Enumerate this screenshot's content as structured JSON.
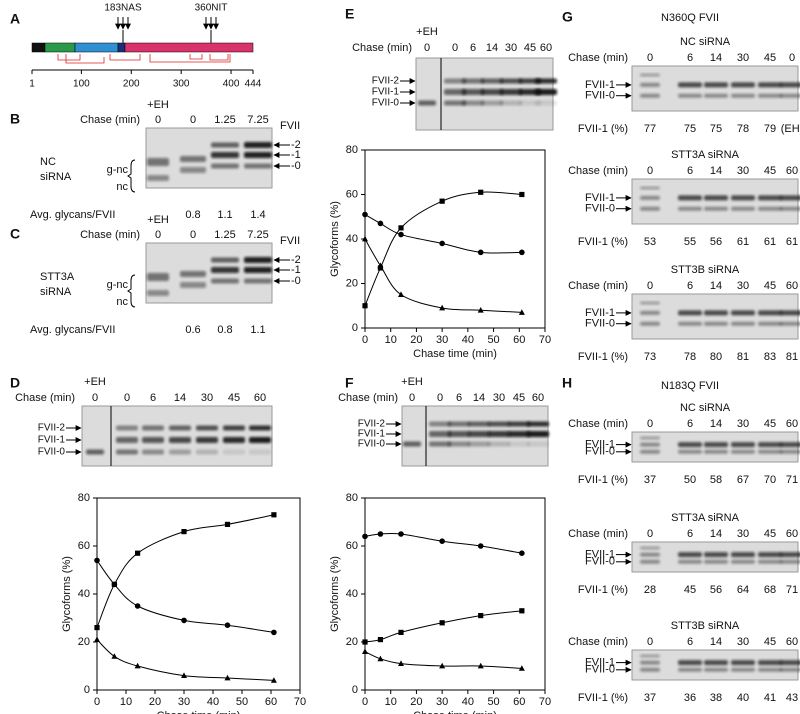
{
  "panels": {
    "A": {
      "letter": "A",
      "sites": [
        "183NAS",
        "360NIT"
      ],
      "ruler_ticks": [
        1,
        100,
        200,
        300,
        400,
        444
      ]
    },
    "B": {
      "letter": "B",
      "eh": "+EH",
      "chase": "Chase (min)",
      "lanes": [
        0,
        0,
        1.25,
        7.25
      ],
      "protein": "FVII",
      "bands": [
        "-2",
        "-1",
        "-0"
      ],
      "condition": [
        "NC",
        "siRNA"
      ],
      "forms": [
        "g-nc",
        "nc"
      ],
      "avg_label": "Avg. glycans/FVII",
      "avg_values": [
        0.8,
        1.1,
        1.4
      ]
    },
    "C": {
      "letter": "C",
      "eh": "+EH",
      "chase": "Chase (min)",
      "lanes": [
        0,
        0,
        1.25,
        7.25
      ],
      "protein": "FVII",
      "bands": [
        "-2",
        "-1",
        "-0"
      ],
      "condition": [
        "STT3A",
        "siRNA"
      ],
      "forms": [
        "g-nc",
        "nc"
      ],
      "avg_label": "Avg. glycans/FVII",
      "avg_values": [
        0.6,
        0.8,
        1.1
      ]
    },
    "D": {
      "letter": "D",
      "eh": "+EH",
      "chase": "Chase (min)",
      "lanes": [
        0,
        0,
        6,
        14,
        30,
        45,
        60
      ],
      "bands": [
        "FVII-2",
        "FVII-1",
        "FVII-0"
      ]
    },
    "E": {
      "letter": "E",
      "eh": "+EH",
      "chase": "Chase (min)",
      "lanes": [
        0,
        0,
        6,
        14,
        30,
        45,
        60
      ],
      "bands": [
        "FVII-2",
        "FVII-1",
        "FVII-0"
      ]
    },
    "F": {
      "letter": "F",
      "eh": "+EH",
      "chase": "Chase (min)",
      "lanes": [
        0,
        0,
        6,
        14,
        30,
        45,
        60
      ],
      "bands": [
        "FVII-2",
        "FVII-1",
        "FVII-0"
      ]
    },
    "G": {
      "letter": "G",
      "title": "N360Q FVII",
      "blots": [
        {
          "title": "NC siRNA",
          "chase": "Chase (min)",
          "lanes": [
            0,
            6,
            14,
            30,
            45,
            0
          ],
          "bands": [
            "FVII-1",
            "FVII-0"
          ],
          "pct_label": "FVII-1 (%)",
          "pct": [
            77,
            75,
            75,
            78,
            79,
            "(EH)"
          ]
        },
        {
          "title": "STT3A siRNA",
          "chase": "Chase (min)",
          "lanes": [
            0,
            6,
            14,
            30,
            45,
            60
          ],
          "bands": [
            "FVII-1",
            "FVII-0"
          ],
          "pct_label": "FVII-1 (%)",
          "pct": [
            53,
            55,
            56,
            61,
            61,
            61
          ]
        },
        {
          "title": "STT3B  siRNA",
          "chase": "Chase (min)",
          "lanes": [
            0,
            6,
            14,
            30,
            45,
            60
          ],
          "bands": [
            "FVII-1",
            "FVII-0"
          ],
          "pct_label": "FVII-1 (%)",
          "pct": [
            73,
            78,
            80,
            81,
            83,
            81
          ]
        }
      ]
    },
    "H": {
      "letter": "H",
      "title": "N183Q FVII",
      "blots": [
        {
          "title": "NC siRNA",
          "chase": "Chase (min)",
          "lanes": [
            0,
            6,
            14,
            30,
            45,
            60
          ],
          "bands": [
            "FVII-1",
            "FVII-0"
          ],
          "pct_label": "FVII-1 (%)",
          "pct": [
            37,
            50,
            58,
            67,
            70,
            71
          ]
        },
        {
          "title": "STT3A siRNA",
          "chase": "Chase (min)",
          "lanes": [
            0,
            6,
            14,
            30,
            45,
            60
          ],
          "bands": [
            "FVII-1",
            "FVII-0"
          ],
          "pct_label": "FVII-1 (%)",
          "pct": [
            28,
            45,
            56,
            64,
            68,
            71
          ]
        },
        {
          "title": "STT3B siRNA",
          "chase": "Chase (min)",
          "lanes": [
            0,
            6,
            14,
            30,
            45,
            60
          ],
          "bands": [
            "FVII-1",
            "FVII-0"
          ],
          "pct_label": "FVII-1 (%)",
          "pct": [
            37,
            36,
            38,
            40,
            41,
            43
          ]
        }
      ]
    }
  },
  "chart_data": [
    {
      "type": "line",
      "xlabel": "Chase time (min)",
      "ylabel": "Glycoforms (%)",
      "x": [
        0,
        6,
        14,
        30,
        45,
        61
      ],
      "series": [
        {
          "color": "#000000",
          "marker": "square",
          "values": [
            26,
            44,
            57,
            66,
            69,
            73
          ]
        },
        {
          "color": "#000000",
          "marker": "circle",
          "values": [
            54,
            44,
            35,
            29,
            27,
            24
          ]
        },
        {
          "color": "#000000",
          "marker": "triangle",
          "values": [
            21,
            14,
            10,
            6,
            5,
            4
          ]
        }
      ],
      "xlim": [
        0,
        70
      ],
      "xticks": [
        0,
        10,
        20,
        30,
        40,
        50,
        60,
        70
      ],
      "ylim": [
        0,
        80
      ],
      "yticks": [
        0,
        20,
        40,
        60,
        80
      ]
    },
    {
      "type": "line",
      "xlabel": "Chase time (min)",
      "ylabel": "Glycoforms (%)",
      "x": [
        0,
        6,
        14,
        30,
        45,
        61
      ],
      "series": [
        {
          "color": "#000000",
          "marker": "square",
          "values": [
            10,
            27,
            45,
            57,
            61,
            60
          ]
        },
        {
          "color": "#000000",
          "marker": "circle",
          "values": [
            51,
            47,
            42,
            38,
            34,
            34
          ]
        },
        {
          "color": "#000000",
          "marker": "triangle",
          "values": [
            40,
            28,
            15,
            9,
            8,
            7
          ]
        }
      ],
      "xlim": [
        0,
        70
      ],
      "xticks": [
        0,
        10,
        20,
        30,
        40,
        50,
        60,
        70
      ],
      "ylim": [
        0,
        80
      ],
      "yticks": [
        0,
        20,
        40,
        60,
        80
      ]
    },
    {
      "type": "line",
      "xlabel": "Chase time (min)",
      "ylabel": "Glycoforms (%)",
      "x": [
        0,
        6,
        14,
        30,
        45,
        61
      ],
      "series": [
        {
          "color": "#000000",
          "marker": "circle",
          "values": [
            64,
            65,
            65,
            62,
            60,
            57
          ]
        },
        {
          "color": "#000000",
          "marker": "square",
          "values": [
            20,
            21,
            24,
            28,
            31,
            33
          ]
        },
        {
          "color": "#000000",
          "marker": "triangle",
          "values": [
            16,
            13,
            11,
            10,
            10,
            9
          ]
        }
      ],
      "xlim": [
        0,
        70
      ],
      "xticks": [
        0,
        10,
        20,
        30,
        40,
        50,
        60,
        70
      ],
      "ylim": [
        0,
        80
      ],
      "yticks": [
        0,
        20,
        40,
        60,
        80
      ]
    }
  ]
}
